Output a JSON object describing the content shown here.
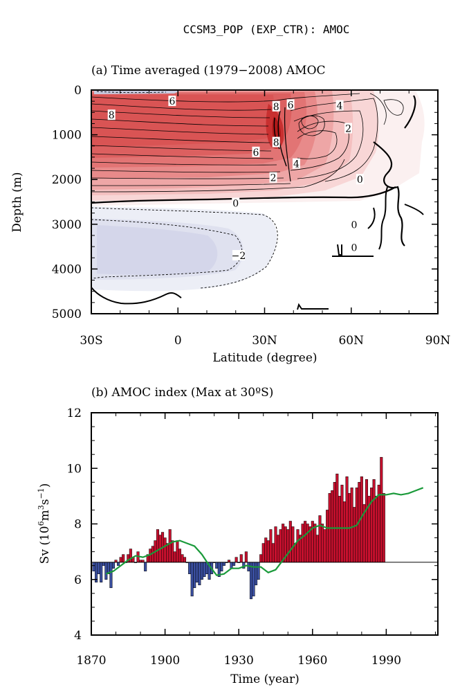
{
  "page_title": "CCSM3_POP (EXP_CTR): AMOC",
  "colors": {
    "positive_fill": "#c8102e",
    "negative_fill": "#3a4fa0",
    "smooth_line": "#1a9a3a",
    "contour": "#000000"
  },
  "chart_data": [
    {
      "type": "contour",
      "title": "(a) Time averaged (1979−2008) AMOC",
      "xlabel": "Latitude (degree)",
      "ylabel": "Depth (m)",
      "xlim": [
        -30,
        90
      ],
      "ylim": [
        5000,
        0
      ],
      "x_ticks": [
        -30,
        0,
        30,
        60,
        90
      ],
      "x_tick_labels": [
        "30S",
        "0",
        "30N",
        "60N",
        "90N"
      ],
      "y_ticks": [
        0,
        1000,
        2000,
        3000,
        4000,
        5000
      ],
      "y_tick_labels": [
        "0",
        "1000",
        "2000",
        "3000",
        "4000",
        "5000"
      ],
      "contour_labels": [
        {
          "text": "6",
          "lat": -2,
          "depth": 250
        },
        {
          "text": "8",
          "lat": -23,
          "depth": 560
        },
        {
          "text": "8",
          "lat": 34,
          "depth": 370
        },
        {
          "text": "6",
          "lat": 39,
          "depth": 330
        },
        {
          "text": "4",
          "lat": 56,
          "depth": 350
        },
        {
          "text": "8",
          "lat": 34,
          "depth": 1170
        },
        {
          "text": "6",
          "lat": 27,
          "depth": 1390
        },
        {
          "text": "4",
          "lat": 41,
          "depth": 1650
        },
        {
          "text": "2",
          "lat": 59,
          "depth": 860
        },
        {
          "text": "2",
          "lat": 33,
          "depth": 1960
        },
        {
          "text": "0",
          "lat": 63,
          "depth": 2000
        },
        {
          "text": "0",
          "lat": 20,
          "depth": 2530
        },
        {
          "text": "0",
          "lat": 61,
          "depth": 3010
        },
        {
          "text": "0",
          "lat": 61,
          "depth": 3520
        },
        {
          "text": "−2",
          "lat": 21,
          "depth": 3700
        }
      ]
    },
    {
      "type": "bar",
      "title": "(b) AMOC index (Max at 30ºS)",
      "xlabel": "Time (year)",
      "ylabel_main": "Sv (10",
      "ylabel_sup1": "6",
      "ylabel_mid": "m",
      "ylabel_sup2": "3",
      "ylabel_end": "s",
      "ylabel_sup3": "−1",
      "ylabel_close": ")",
      "xlim": [
        1870,
        2011
      ],
      "ylim": [
        4,
        12
      ],
      "baseline": 6.62,
      "x_ticks": [
        1870,
        1900,
        1930,
        1960,
        1990
      ],
      "x_tick_labels": [
        "1870",
        "1900",
        "1930",
        "1960",
        "1990"
      ],
      "y_ticks": [
        4,
        6,
        8,
        10,
        12
      ],
      "y_tick_labels": [
        "4",
        "6",
        "8",
        "10",
        "12"
      ],
      "x_start": 1871,
      "values": [
        6.3,
        5.9,
        6.2,
        5.9,
        6.5,
        6.0,
        6.2,
        5.7,
        6.4,
        6.7,
        6.5,
        6.8,
        6.9,
        6.6,
        6.9,
        7.1,
        6.8,
        6.6,
        7.0,
        6.7,
        6.7,
        6.3,
        6.9,
        7.1,
        7.2,
        7.4,
        7.8,
        7.6,
        7.7,
        7.5,
        7.3,
        7.8,
        7.4,
        7.0,
        7.4,
        7.1,
        6.9,
        6.8,
        6.6,
        6.2,
        5.4,
        5.7,
        5.9,
        5.8,
        6.0,
        6.1,
        6.2,
        6.0,
        6.2,
        6.6,
        6.4,
        6.1,
        6.3,
        6.5,
        6.6,
        6.7,
        6.4,
        6.5,
        6.8,
        6.6,
        6.9,
        6.4,
        7.0,
        6.3,
        5.3,
        5.4,
        5.8,
        6.0,
        6.9,
        7.3,
        7.5,
        7.4,
        7.8,
        7.3,
        7.9,
        7.6,
        7.8,
        8.0,
        7.9,
        7.8,
        8.1,
        7.9,
        7.3,
        7.8,
        7.6,
        8.0,
        8.1,
        8.0,
        7.9,
        8.1,
        8.0,
        7.6,
        8.3,
        8.0,
        7.8,
        8.5,
        9.1,
        9.2,
        9.5,
        9.8,
        9.0,
        9.4,
        8.8,
        9.7,
        9.1,
        9.3,
        8.6,
        9.3,
        9.5,
        9.7,
        8.7,
        9.6,
        9.0,
        9.3,
        9.6,
        9.0,
        9.4,
        10.4,
        9.1
      ],
      "smooth_x": [
        1876,
        1879,
        1882,
        1885,
        1888,
        1891,
        1894,
        1897,
        1900,
        1903,
        1906,
        1909,
        1912,
        1915,
        1918,
        1921,
        1924,
        1927,
        1930,
        1933,
        1936,
        1939,
        1942,
        1945,
        1948,
        1951,
        1954,
        1957,
        1960,
        1963,
        1966,
        1969,
        1972,
        1975,
        1978,
        1981,
        1984,
        1987,
        1990,
        1993,
        1996,
        1999,
        2002,
        2005
      ],
      "smooth_y": [
        6.2,
        6.3,
        6.5,
        6.7,
        6.85,
        6.8,
        6.9,
        7.05,
        7.2,
        7.35,
        7.4,
        7.3,
        7.2,
        6.9,
        6.5,
        6.15,
        6.2,
        6.4,
        6.4,
        6.5,
        6.45,
        6.45,
        6.25,
        6.35,
        6.7,
        7.05,
        7.4,
        7.6,
        7.85,
        7.95,
        7.85,
        7.85,
        7.85,
        7.85,
        7.95,
        8.4,
        8.8,
        9.05,
        9.05,
        9.1,
        9.05,
        9.1,
        9.2,
        9.3
      ]
    }
  ]
}
